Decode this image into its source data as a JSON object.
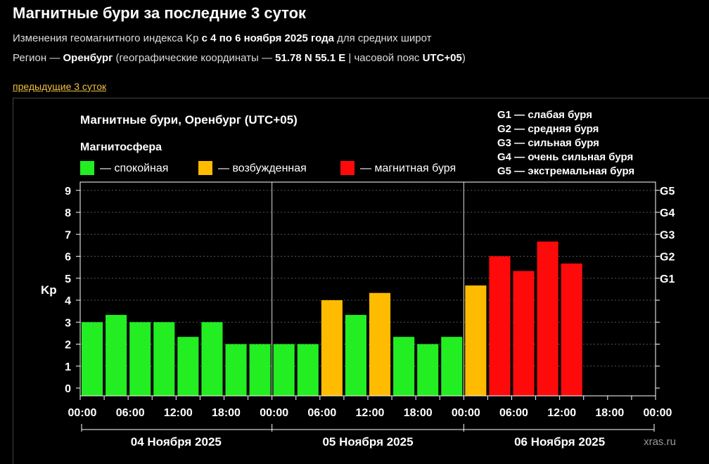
{
  "header": {
    "title": "Магнитные бури за последние 3 суток",
    "line1_a": "Изменения геомагнитного индекса Kp ",
    "line1_b": "с 4 по 6 ноября 2025 года",
    "line1_c": " для средних широт",
    "line2_a": "Регион — ",
    "line2_b": "Оренбург",
    "line2_c": " (географические координаты — ",
    "line2_d": "51.78 N 55.1 E",
    "line2_e": " | часовой пояс ",
    "line2_f": "UTC+05",
    "line2_g": ")",
    "prev_link": "предыдущие 3 суток"
  },
  "chart_data": {
    "type": "bar",
    "title": "Магнитные бури, Оренбург (UTC+05)",
    "legend_title": "Магнитосфера",
    "legend": [
      {
        "label": "— спокойная",
        "color": "#22ee22"
      },
      {
        "label": "— возбужденная",
        "color": "#ffbb00"
      },
      {
        "label": "— магнитная буря",
        "color": "#ff0a0a"
      }
    ],
    "storm_scale": [
      "G1 — слабая буря",
      "G2 — средняя буря",
      "G3 — сильная буря",
      "G4 — очень сильная буря",
      "G5 — экстремальная буря"
    ],
    "ylabel": "Kp",
    "ylim": [
      0,
      9
    ],
    "y_ticks": [
      "0",
      "1",
      "2",
      "3",
      "4",
      "5",
      "6",
      "7",
      "8",
      "9"
    ],
    "right_ticks": [
      {
        "label": "G1",
        "kp": 5
      },
      {
        "label": "G2",
        "kp": 6
      },
      {
        "label": "G3",
        "kp": 7
      },
      {
        "label": "G4",
        "kp": 8
      },
      {
        "label": "G5",
        "kp": 9
      }
    ],
    "x_tick_labels": [
      "00:00",
      "06:00",
      "12:00",
      "18:00",
      "00:00",
      "06:00",
      "12:00",
      "18:00",
      "00:00",
      "06:00",
      "12:00",
      "18:00",
      "00:00"
    ],
    "day_labels": [
      "04 Ноября 2025",
      "05 Ноября 2025",
      "06 Ноября 2025"
    ],
    "intervals": [
      "00-03",
      "03-06",
      "06-09",
      "09-12",
      "12-15",
      "15-18",
      "18-21",
      "21-24",
      "00-03",
      "03-06",
      "06-09",
      "09-12",
      "12-15",
      "15-18",
      "18-21",
      "21-24",
      "00-03",
      "03-06",
      "06-09",
      "09-12",
      "12-15"
    ],
    "values": [
      3,
      3.33,
      3,
      3,
      2.33,
      3,
      2,
      2,
      2,
      2,
      4,
      3.33,
      4.33,
      2.33,
      2,
      2.33,
      4.67,
      6,
      5.33,
      6.67,
      5.67
    ],
    "grid": true,
    "watermark": "xras.ru"
  }
}
